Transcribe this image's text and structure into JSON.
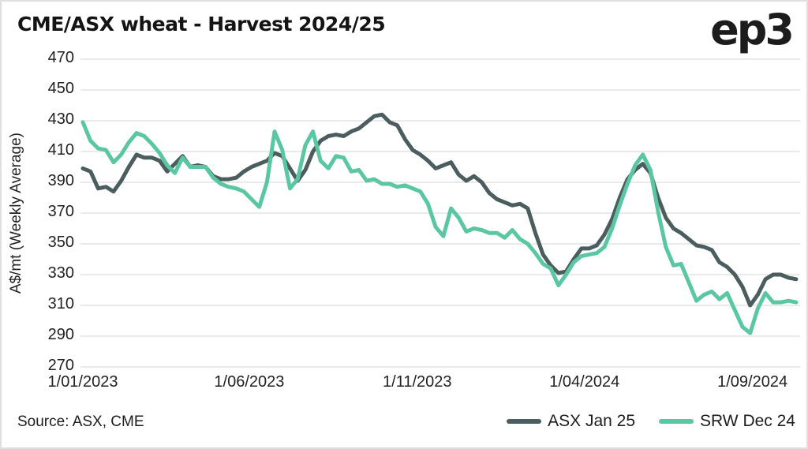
{
  "header": {
    "title": "CME/ASX wheat - Harvest 2024/25",
    "logo_text": "ep3"
  },
  "footer": {
    "source": "Source: ASX, CME"
  },
  "colors": {
    "asx": "#4B5D5F",
    "srw": "#5BC7A2",
    "grid": "#e3e3e3",
    "text": "#1d1d1d"
  },
  "chart_data": {
    "type": "line",
    "title": "CME/ASX wheat - Harvest 2024/25",
    "xlabel": "",
    "ylabel": "A$/mt (Weekly Average)",
    "ylim": [
      270,
      470
    ],
    "y_ticks": [
      470,
      450,
      430,
      410,
      390,
      370,
      350,
      330,
      310,
      290,
      270
    ],
    "grid": "horizontal-only",
    "legend_position": "bottom-right",
    "x_unit": "weeks since 1/01/2023 (weekly average data)",
    "x_range_weeks": [
      0,
      93
    ],
    "x_ticks": [
      {
        "label": "1/01/2023",
        "week": 0
      },
      {
        "label": "1/06/2023",
        "week": 21.7
      },
      {
        "label": "1/11/2023",
        "week": 43.6
      },
      {
        "label": "1/04/2024",
        "week": 65.4
      },
      {
        "label": "1/09/2024",
        "week": 87.3
      }
    ],
    "series": [
      {
        "name": "ASX Jan 25",
        "color_key": "asx",
        "values": [
          399,
          397,
          386,
          387,
          384,
          391,
          400,
          408,
          406,
          406,
          404,
          397,
          402,
          407,
          400,
          401,
          400,
          394,
          392,
          392,
          393,
          397,
          400,
          402,
          404,
          409,
          407,
          399,
          391,
          398,
          410,
          417,
          420,
          421,
          420,
          423,
          425,
          429,
          433,
          434,
          429,
          427,
          418,
          411,
          408,
          404,
          399,
          401,
          403,
          395,
          391,
          394,
          390,
          383,
          379,
          377,
          375,
          376,
          373,
          357,
          343,
          336,
          331,
          332,
          340,
          347,
          347,
          349,
          356,
          366,
          380,
          392,
          398,
          402,
          396,
          380,
          367,
          360,
          357,
          353,
          349,
          348,
          346,
          338,
          335,
          330,
          322,
          310,
          317,
          327,
          330,
          330,
          328,
          327
        ]
      },
      {
        "name": "SRW Dec 24",
        "color_key": "srw",
        "values": [
          429,
          417,
          412,
          411,
          403,
          408,
          416,
          422,
          420,
          415,
          409,
          401,
          396,
          406,
          400,
          400,
          400,
          393,
          389,
          387,
          386,
          384,
          379,
          374,
          390,
          423,
          411,
          386,
          392,
          414,
          423,
          404,
          399,
          407,
          406,
          397,
          398,
          391,
          392,
          389,
          389,
          387,
          388,
          386,
          384,
          376,
          361,
          355,
          373,
          367,
          358,
          360,
          359,
          357,
          357,
          354,
          359,
          353,
          350,
          344,
          337,
          334,
          323,
          330,
          338,
          342,
          343,
          344,
          348,
          360,
          375,
          389,
          401,
          408,
          398,
          371,
          348,
          336,
          337,
          325,
          313,
          317,
          319,
          314,
          318,
          307,
          296,
          292,
          308,
          318,
          312,
          312,
          313,
          312
        ]
      }
    ]
  }
}
